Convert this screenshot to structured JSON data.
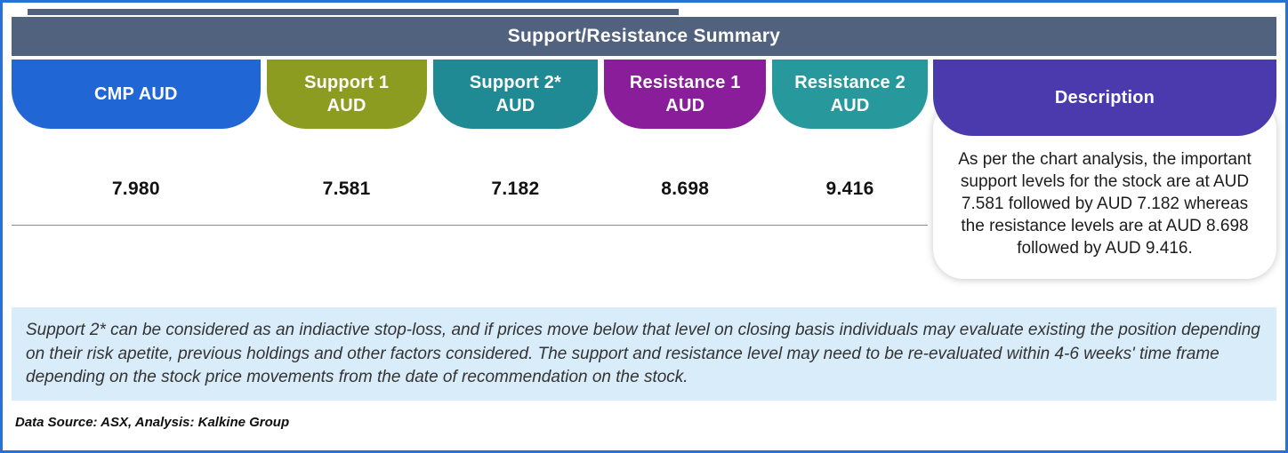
{
  "colors": {
    "border": "#2b70d5",
    "title_bar": "#51627f",
    "cmp": "#2066d4",
    "support1": "#8c9c21",
    "support2": "#1f8a94",
    "resistance1": "#8a1d99",
    "resistance2": "#27989c",
    "description": "#4a3aad",
    "note_bg": "#d9ecf9"
  },
  "header": {
    "title": "Support/Resistance Summary"
  },
  "table": {
    "columns": [
      {
        "line1": "CMP AUD",
        "line2": "",
        "value": "7.980"
      },
      {
        "line1": "Support 1",
        "line2": "AUD",
        "value": "7.581"
      },
      {
        "line1": "Support 2*",
        "line2": "AUD",
        "value": "7.182"
      },
      {
        "line1": "Resistance 1",
        "line2": "AUD",
        "value": "8.698"
      },
      {
        "line1": "Resistance 2",
        "line2": "AUD",
        "value": "9.416"
      }
    ],
    "description": {
      "label": "Description",
      "text": "As per the chart analysis, the important support levels for the stock are at AUD 7.581 followed by AUD 7.182 whereas the resistance levels are at AUD 8.698 followed by AUD 9.416."
    }
  },
  "note": "Support 2* can be considered as an indiactive stop-loss, and if prices move below that level on closing basis individuals may evaluate existing the position depending on their risk apetite, previous holdings and other factors considered. The support and resistance level may need to be re-evaluated within 4-6 weeks' time frame depending on the stock price movements from  the date of recommendation on the stock.",
  "source": "Data Source: ASX, Analysis: Kalkine Group"
}
